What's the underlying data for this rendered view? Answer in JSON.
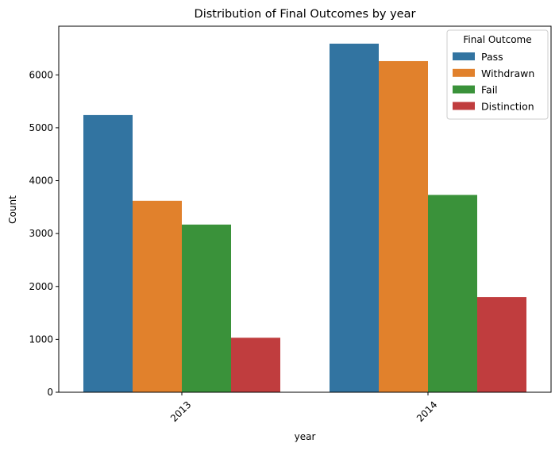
{
  "chart_data": {
    "type": "bar",
    "title": "Distribution of Final Outcomes by year",
    "xlabel": "year",
    "ylabel": "Count",
    "categories": [
      "2013",
      "2014"
    ],
    "series": [
      {
        "name": "Pass",
        "color": "#3274a1",
        "values": [
          5240,
          6590
        ]
      },
      {
        "name": "Withdrawn",
        "color": "#e1812c",
        "values": [
          3620,
          6260
        ]
      },
      {
        "name": "Fail",
        "color": "#3a923a",
        "values": [
          3170,
          3730
        ]
      },
      {
        "name": "Distinction",
        "color": "#c03d3e",
        "values": [
          1030,
          1800
        ]
      }
    ],
    "ylim": [
      0,
      6920
    ],
    "yticks": [
      "0",
      "1000",
      "2000",
      "3000",
      "4000",
      "5000",
      "6000"
    ],
    "ytick_values": [
      0,
      1000,
      2000,
      3000,
      4000,
      5000,
      6000
    ],
    "legend": {
      "title": "Final Outcome",
      "placement": "top-right"
    },
    "grid": false,
    "xtick_rotation_deg": 45
  }
}
